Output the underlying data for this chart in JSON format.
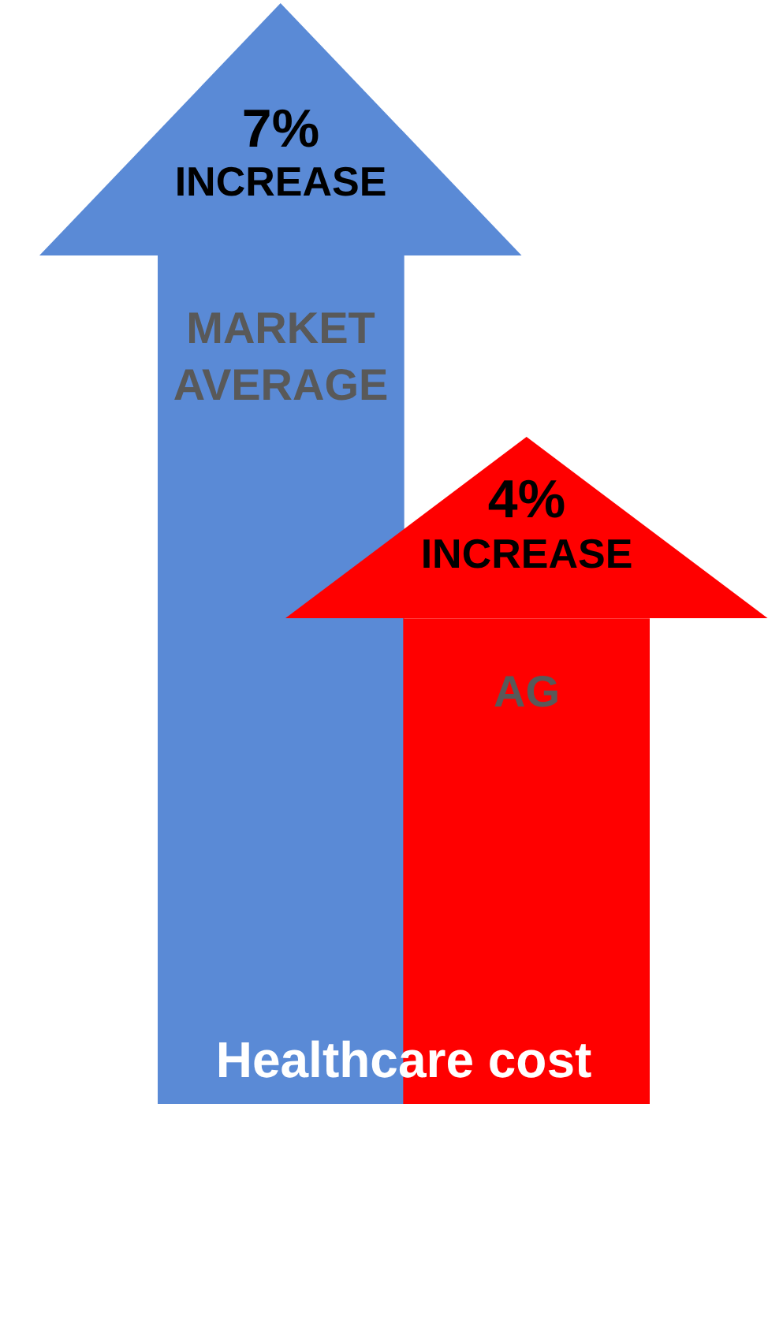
{
  "chart_data": {
    "type": "bar",
    "xlabel": "Healthcare cost",
    "categories": [
      "MARKET AVERAGE",
      "AG"
    ],
    "values": [
      7,
      4
    ],
    "colors": [
      "#5a8ad6",
      "#ff0000"
    ],
    "value_labels": [
      "7% INCREASE",
      "4% INCREASE"
    ]
  }
}
